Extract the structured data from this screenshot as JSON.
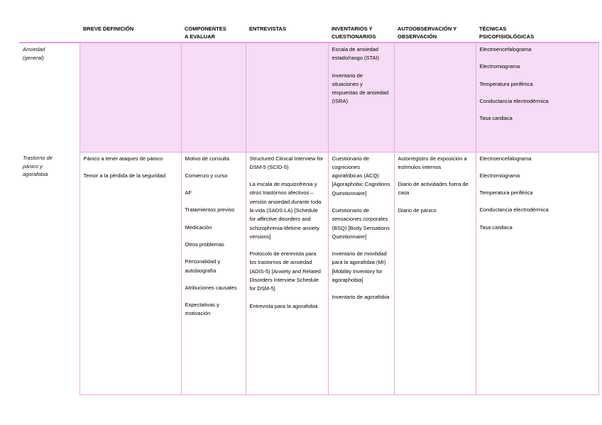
{
  "colors": {
    "cell_fill": "#f6dcf4",
    "cell_border": "#e7abdd",
    "header_rule": "#e49fdb",
    "text": "#000000"
  },
  "table": {
    "columns": [
      {
        "key": "label",
        "label": ""
      },
      {
        "key": "breve_definicion",
        "label": "BREVE DEFINICIÓN"
      },
      {
        "key": "componentes",
        "label": "COMPONENTES\nA EVALUAR"
      },
      {
        "key": "entrevistas",
        "label": "ENTREVISTAS"
      },
      {
        "key": "inventarios",
        "label": "INVENTARIOS Y\nCUESTIONARIOS"
      },
      {
        "key": "autoobservacion",
        "label": "AUTOOBSERVACIÓN Y\nOBSERVACIÓN"
      },
      {
        "key": "tecnicas",
        "label": "TÉCNICAS\nPSICOFISIOLÓGICAS"
      }
    ],
    "rows": [
      {
        "label": "Ansiedad\n(general)",
        "cells": {
          "breve_definicion": [],
          "componentes": [],
          "entrevistas": [],
          "inventarios": [
            "Escala de ansiedad estado/rasgo (STAI)",
            "Inventario de situaciones y respuestas de ansiedad (ISRA)"
          ],
          "autoobservacion": [],
          "tecnicas": [
            "Electroencefalograma",
            "Electromiograma",
            "Temperatura periférica",
            "Conductancia electrodérmica",
            "Tasa cardiaca"
          ]
        }
      },
      {
        "label": "Trastorno de\npánico y\nagorafobia",
        "cells": {
          "breve_definicion": [
            "Pánico a tener ataques de pánico",
            "Temor a la pérdida de la seguridad"
          ],
          "componentes": [
            "Motivo de consulta",
            "Comienzo y curso",
            "AF",
            "Tratamientos previos",
            "Medicación",
            "Otros problemas",
            "Personalidad y autobiografía",
            "Atribuciones causales",
            "Expectativas y motivación"
          ],
          "entrevistas": [
            "Structured Clinical Interview for DSM-5 (SCID-5)",
            "La escala de esquizofrenia y otros trastornos afectivos – versión ansiedad durante toda la vida (SADS-LA) [Schedule for affective disorders and schizophrenia-lifetime anxiety versions]",
            "Protocolo de entrevista para los trastornos de ansiedad (ADIS-5) [Anxiety and Related Disorders Interview Schedule for DSM-5]",
            "Entrevista para la agorafobia"
          ],
          "inventarios": [
            "Cuestionario de cogniciones agorafóbicas (ACQ) [Agoraphobic Cognitions Questionnaire]",
            "Cuestionario de sensaciones corporales (BSQ) [Body Sensations Questionnaire]",
            "Inventario de movilidad para la agorafobia (MI) [Mobility Inventory for agoraphobia]",
            "Inventario de agorafobia"
          ],
          "autoobservacion": [
            "Autorregistro de exposición a estímulos internos",
            "Diario de actividades fuera de casa",
            "Diario de pánico"
          ],
          "tecnicas": [
            "Electroencefalograma",
            "Electromiograma",
            "Temperatura periférica",
            "Conductancia electrodérmica",
            "Tasa cardiaca"
          ]
        }
      }
    ]
  }
}
